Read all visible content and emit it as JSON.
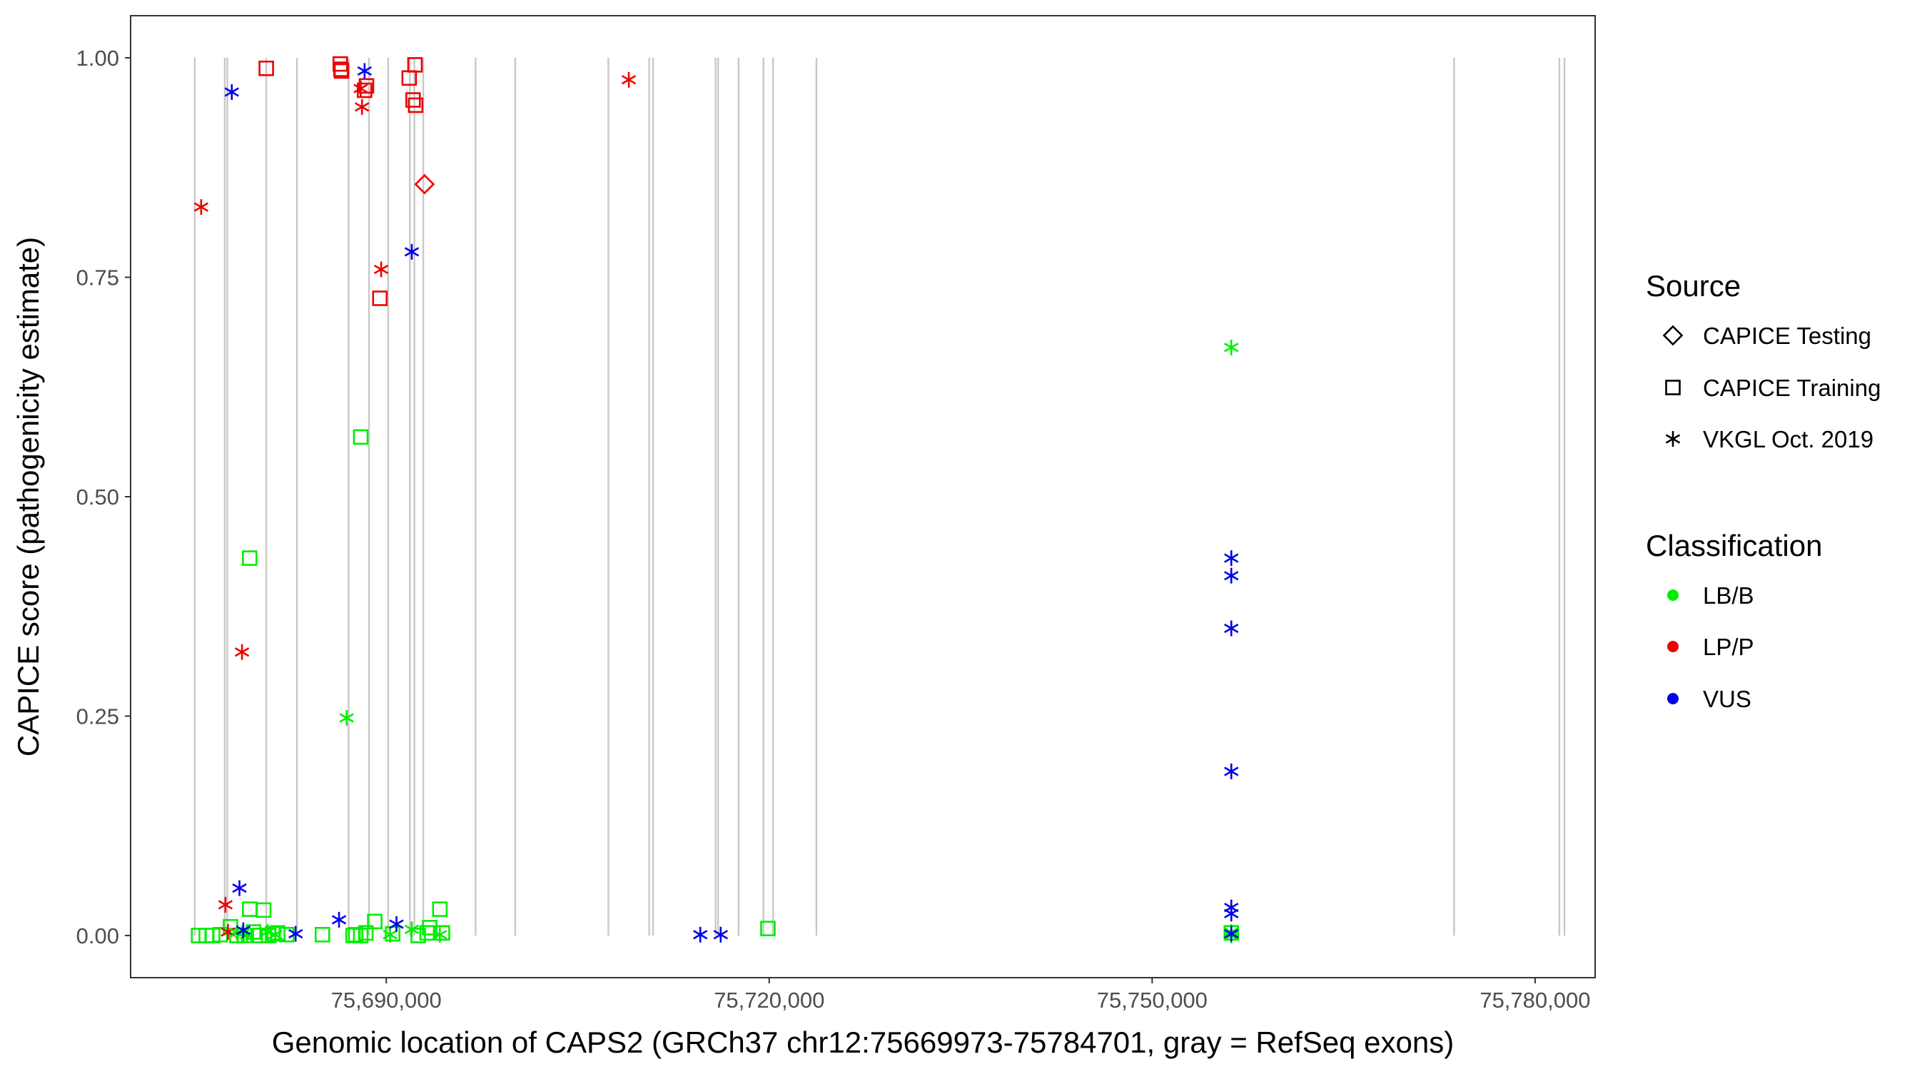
{
  "chart_data": {
    "type": "scatter",
    "xlabel": "Genomic location of CAPS2 (GRCh37 chr12:75669973-75784701, gray = RefSeq exons)",
    "ylabel": "CAPICE score (pathogenicity estimate)",
    "xlim": [
      75669973,
      75784701
    ],
    "ylim": [
      -0.048,
      1.048
    ],
    "x_ticks": [
      {
        "value": 75690000,
        "label": "75,690,000"
      },
      {
        "value": 75720000,
        "label": "75,720,000"
      },
      {
        "value": 75750000,
        "label": "75,750,000"
      },
      {
        "value": 75780000,
        "label": "75,780,000"
      }
    ],
    "y_ticks": [
      {
        "value": 0.0,
        "label": "0.00"
      },
      {
        "value": 0.25,
        "label": "0.25"
      },
      {
        "value": 0.5,
        "label": "0.50"
      },
      {
        "value": 0.75,
        "label": "0.75"
      },
      {
        "value": 1.0,
        "label": "1.00"
      }
    ],
    "grid": false,
    "exons": [
      75675000,
      75677350,
      75677550,
      75680600,
      75683000,
      75687050,
      75688650,
      75690150,
      75691850,
      75692200,
      75692900,
      75697000,
      75700100,
      75707400,
      75710600,
      75710900,
      75715800,
      75716000,
      75717600,
      75719550,
      75720300,
      75723700,
      75773650,
      75781900,
      75782300
    ],
    "legend": {
      "position": "right",
      "source": {
        "title": "Source",
        "items": [
          {
            "label": "CAPICE Testing",
            "shape": "diamond"
          },
          {
            "label": "CAPICE Training",
            "shape": "square"
          },
          {
            "label": "VKGL Oct. 2019",
            "shape": "asterisk"
          }
        ]
      },
      "classification": {
        "title": "Classification",
        "items": [
          {
            "label": "LB/B",
            "color": "#00ee00"
          },
          {
            "label": "LP/P",
            "color": "#ee0000"
          },
          {
            "label": "VUS",
            "color": "#0000ee"
          }
        ]
      }
    },
    "series": [
      {
        "source": "CAPICE Testing",
        "classification": "LP/P",
        "shape": "diamond",
        "color": "#ee0000",
        "points": [
          [
            75693000,
            0.856
          ]
        ]
      },
      {
        "source": "CAPICE Training",
        "classification": "LP/P",
        "shape": "square",
        "color": "#ee0000",
        "points": [
          [
            75680600,
            0.988
          ],
          [
            75686400,
            0.993
          ],
          [
            75686450,
            0.987
          ],
          [
            75686500,
            0.985
          ],
          [
            75688300,
            0.963
          ],
          [
            75688450,
            0.968
          ],
          [
            75691800,
            0.977
          ],
          [
            75692100,
            0.952
          ],
          [
            75692300,
            0.946
          ],
          [
            75692250,
            0.992
          ],
          [
            75689500,
            0.726
          ]
        ]
      },
      {
        "source": "CAPICE Training",
        "classification": "LB/B",
        "shape": "square",
        "color": "#00ee00",
        "points": [
          [
            75675300,
            0.0
          ],
          [
            75675900,
            0.0
          ],
          [
            75676400,
            0.0
          ],
          [
            75677000,
            0.001
          ],
          [
            75677800,
            0.01
          ],
          [
            75678300,
            0.0
          ],
          [
            75678900,
            0.0
          ],
          [
            75679300,
            0.03
          ],
          [
            75679600,
            0.004
          ],
          [
            75680100,
            0.0
          ],
          [
            75680400,
            0.029
          ],
          [
            75680800,
            0.0
          ],
          [
            75681100,
            0.002
          ],
          [
            75681500,
            0.003
          ],
          [
            75682200,
            0.001
          ],
          [
            75679300,
            0.43
          ],
          [
            75685000,
            0.001
          ],
          [
            75687400,
            0.0
          ],
          [
            75687600,
            0.001
          ],
          [
            75688000,
            0.568
          ],
          [
            75688000,
            0.0
          ],
          [
            75688400,
            0.003
          ],
          [
            75689100,
            0.016
          ],
          [
            75690500,
            0.002
          ],
          [
            75692500,
            0.0
          ],
          [
            75693200,
            0.003
          ],
          [
            75693400,
            0.009
          ],
          [
            75694200,
            0.03
          ],
          [
            75694400,
            0.003
          ],
          [
            75719900,
            0.008
          ],
          [
            75756200,
            0.003
          ]
        ]
      },
      {
        "source": "VKGL Oct. 2019",
        "classification": "LP/P",
        "shape": "asterisk",
        "color": "#ee0000",
        "points": [
          [
            75675500,
            0.83
          ],
          [
            75709000,
            0.975
          ],
          [
            75688000,
            0.965
          ],
          [
            75688100,
            0.944
          ],
          [
            75689600,
            0.759
          ],
          [
            75678700,
            0.323
          ],
          [
            75677400,
            0.035
          ],
          [
            75677600,
            0.004
          ]
        ]
      },
      {
        "source": "VKGL Oct. 2019",
        "classification": "LB/B",
        "shape": "asterisk",
        "color": "#00ee00",
        "points": [
          [
            75756200,
            0.67
          ],
          [
            75686900,
            0.248
          ],
          [
            75678300,
            0.003
          ],
          [
            75678700,
            0.002
          ],
          [
            75679100,
            0.001
          ],
          [
            75680700,
            0.004
          ],
          [
            75681300,
            0.001
          ],
          [
            75690300,
            0.001
          ],
          [
            75692000,
            0.007
          ],
          [
            75694200,
            0.001
          ],
          [
            75756200,
            0.004
          ],
          [
            75756200,
            0.0
          ]
        ]
      },
      {
        "source": "VKGL Oct. 2019",
        "classification": "VUS",
        "shape": "asterisk",
        "color": "#0000ee",
        "points": [
          [
            75677900,
            0.961
          ],
          [
            75688300,
            0.985
          ],
          [
            75692000,
            0.779
          ],
          [
            75756200,
            0.43
          ],
          [
            75756200,
            0.41
          ],
          [
            75756200,
            0.35
          ],
          [
            75756200,
            0.187
          ],
          [
            75756200,
            0.032
          ],
          [
            75756200,
            0.025
          ],
          [
            75756200,
            0.002
          ],
          [
            75678500,
            0.054
          ],
          [
            75678800,
            0.006
          ],
          [
            75682900,
            0.002
          ],
          [
            75686300,
            0.018
          ],
          [
            75690800,
            0.013
          ],
          [
            75714600,
            0.001
          ],
          [
            75716200,
            0.001
          ]
        ]
      }
    ]
  }
}
